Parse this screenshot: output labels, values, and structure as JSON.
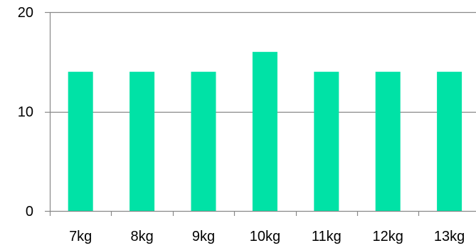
{
  "chart_data": {
    "type": "bar",
    "title": "",
    "xlabel": "",
    "ylabel": "",
    "categories": [
      "7kg",
      "8kg",
      "9kg",
      "10kg",
      "11kg",
      "12kg",
      "13kg"
    ],
    "values": [
      14,
      14,
      14,
      16,
      14,
      14,
      14
    ],
    "ylim": [
      0,
      20
    ],
    "yticks": [
      0,
      10,
      20
    ],
    "ytick_labels": [
      "0",
      "10",
      "20"
    ],
    "grid": true,
    "legend": "none",
    "colors": {
      "bar": "#00E2A6",
      "grid": "#888888",
      "axis": "#888888"
    }
  }
}
